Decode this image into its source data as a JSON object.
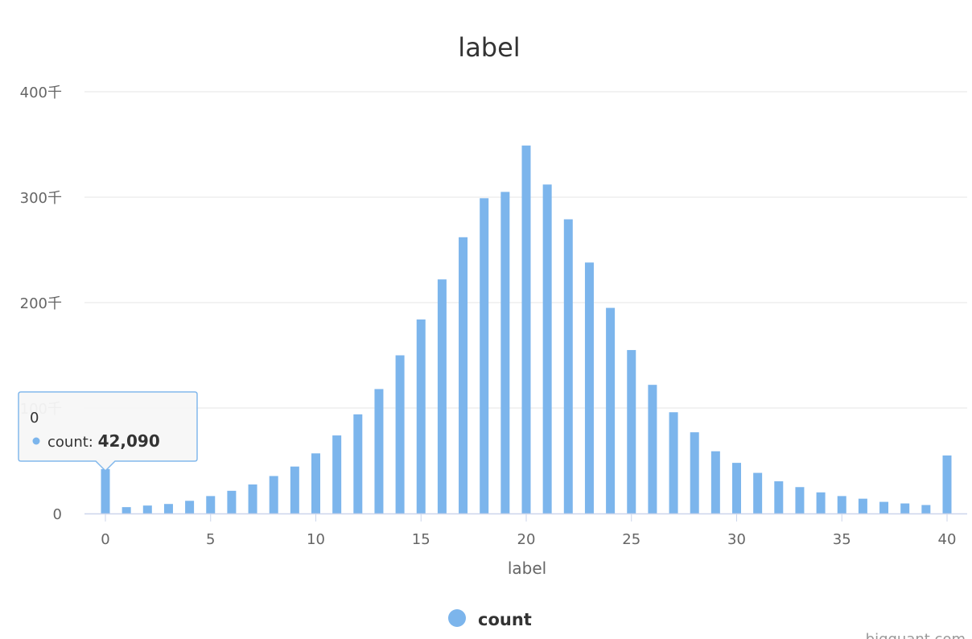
{
  "chart_data": {
    "type": "bar",
    "title": "label",
    "xlabel": "label",
    "ylabel": "",
    "x": [
      0,
      1,
      2,
      3,
      4,
      5,
      6,
      7,
      8,
      9,
      10,
      11,
      12,
      13,
      14,
      15,
      16,
      17,
      18,
      19,
      20,
      21,
      22,
      23,
      24,
      25,
      26,
      27,
      28,
      29,
      30,
      31,
      32,
      33,
      34,
      35,
      36,
      37,
      38,
      39,
      40
    ],
    "series": [
      {
        "name": "count",
        "color": "#7cb5ec",
        "values": [
          42090,
          6000,
          7500,
          9000,
          12000,
          16500,
          21500,
          27500,
          35500,
          44500,
          57000,
          74000,
          94000,
          118000,
          150000,
          184000,
          222000,
          262000,
          299000,
          305000,
          349000,
          312000,
          279000,
          238000,
          195000,
          155000,
          122000,
          96000,
          77000,
          59000,
          48000,
          38500,
          30500,
          25000,
          20000,
          16500,
          14000,
          11000,
          9500,
          8000,
          55000
        ]
      }
    ],
    "xlim": [
      0,
      40
    ],
    "ylim": [
      0,
      400000
    ],
    "x_ticks": [
      {
        "value": 0,
        "label": "0"
      },
      {
        "value": 5,
        "label": "5"
      },
      {
        "value": 10,
        "label": "10"
      },
      {
        "value": 15,
        "label": "15"
      },
      {
        "value": 20,
        "label": "20"
      },
      {
        "value": 25,
        "label": "25"
      },
      {
        "value": 30,
        "label": "30"
      },
      {
        "value": 35,
        "label": "35"
      },
      {
        "value": 40,
        "label": "40"
      }
    ],
    "y_ticks": [
      {
        "value": 0,
        "label": "0"
      },
      {
        "value": 100000,
        "label": "100千"
      },
      {
        "value": 200000,
        "label": "200千"
      },
      {
        "value": 300000,
        "label": "300千"
      },
      {
        "value": 400000,
        "label": "400千"
      }
    ],
    "grid": true,
    "legend": {
      "placement": "bottom-center",
      "label": "count"
    },
    "tooltip": {
      "header": "0",
      "series_label": "count: ",
      "value": "42,090"
    }
  },
  "credits": "bigquant.com",
  "colors": {
    "bar": "#7cb5ec",
    "grid": "#e6e6e6",
    "axis": "#ccd6eb",
    "tooltip_border": "#7cb5ec",
    "tooltip_bg": "#f7f7f7"
  }
}
